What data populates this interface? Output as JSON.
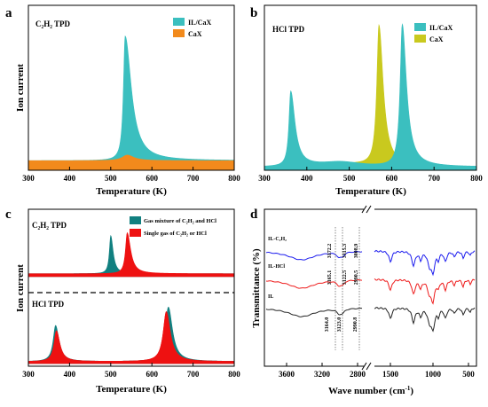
{
  "figure": {
    "panel_labels": [
      "a",
      "b",
      "c",
      "d"
    ]
  },
  "chart_data": [
    {
      "panel": "a",
      "type": "area",
      "title": "C₂H₂ TPD",
      "xlabel": "Temperature (K)",
      "ylabel": "Ion current",
      "xlim": [
        300,
        800
      ],
      "xticks": [
        "300",
        "400",
        "500",
        "600",
        "700",
        "800"
      ],
      "legend_position": "top-right",
      "series": [
        {
          "name": "IL/CaX",
          "color": "#3bbfbf",
          "baseline": 0.06,
          "peaks": [
            {
              "x": 535,
              "h": 0.78,
              "wl": 5,
              "wr": 18
            }
          ]
        },
        {
          "name": "CaX",
          "color": "#f28a1c",
          "baseline": 0.06,
          "peaks": [
            {
              "x": 540,
              "h": 0.035,
              "wl": 15,
              "wr": 20
            }
          ]
        }
      ]
    },
    {
      "panel": "b",
      "type": "area",
      "title": "HCl TPD",
      "xlabel": "Temperature (K)",
      "ylabel": "",
      "xlim": [
        300,
        800
      ],
      "xticks": [
        "300",
        "400",
        "500",
        "600",
        "700",
        "800"
      ],
      "legend_position": "top-right",
      "series": [
        {
          "name": "IL/CaX",
          "color": "#3bbfbf",
          "baseline": 0.02,
          "peaks": [
            {
              "x": 362,
              "h": 0.47,
              "wl": 5,
              "wr": 12
            },
            {
              "x": 625,
              "h": 0.89,
              "wl": 6,
              "wr": 12
            },
            {
              "x": 480,
              "h": 0.03,
              "wl": 60,
              "wr": 60
            }
          ]
        },
        {
          "name": "CaX",
          "color": "#c9c91e",
          "baseline": 0.02,
          "peaks": [
            {
              "x": 570,
              "h": 0.88,
              "wl": 6,
              "wr": 12
            },
            {
              "x": 510,
              "h": 0.02,
              "wl": 60,
              "wr": 60
            }
          ]
        }
      ]
    },
    {
      "panel": "c",
      "type": "area",
      "title_top": "C₂H₂  TPD",
      "title_bottom": "HCl TPD",
      "xlabel": "Temperature (K)",
      "ylabel": "Ion current",
      "xlim": [
        300,
        800
      ],
      "xticks": [
        "300",
        "400",
        "500",
        "600",
        "700",
        "800"
      ],
      "legend_position": "top-right",
      "legend": [
        "Gas mixture of C₂H₂ and HCl",
        "Single gas of C₂H₂ or HCl"
      ],
      "series": [
        {
          "name": "Gas mixture of C₂H₂ and HCl",
          "color": "#118080",
          "group": "top",
          "baseline": 0.05,
          "peaks": [
            {
              "x": 500,
              "h": 0.65,
              "wl": 4,
              "wr": 7
            }
          ]
        },
        {
          "name": "Single gas of C₂H₂ or HCl",
          "color": "#ee1111",
          "group": "top",
          "baseline": 0.05,
          "peaks": [
            {
              "x": 540,
              "h": 0.7,
              "wl": 5,
              "wr": 10
            }
          ]
        },
        {
          "name": "Gas mixture of C₂H₂ and HCl",
          "color": "#118080",
          "group": "bottom",
          "baseline": 0.03,
          "peaks": [
            {
              "x": 366,
              "h": 0.55,
              "wl": 7,
              "wr": 10
            },
            {
              "x": 640,
              "h": 0.83,
              "wl": 9,
              "wr": 12
            }
          ]
        },
        {
          "name": "Single gas of C₂H₂ or HCl",
          "color": "#ee1111",
          "group": "bottom",
          "baseline": 0.03,
          "peaks": [
            {
              "x": 368,
              "h": 0.47,
              "wl": 7,
              "wr": 10
            },
            {
              "x": 635,
              "h": 0.76,
              "wl": 9,
              "wr": 12
            }
          ]
        }
      ]
    },
    {
      "panel": "d",
      "type": "line",
      "xlabel": "Wave number (cm⁻¹)",
      "xlabel_prefix": "Wave number (cm",
      "xlabel_sup": "-1",
      "xlabel_suffix": ")",
      "ylabel": "Transmittance (%)",
      "xticks": [
        "3600",
        "3200",
        "2800",
        "1500",
        "1000",
        "500"
      ],
      "axis_break": "between 2800 and 1500",
      "series": [
        {
          "name": "IL-C₂H₂",
          "color": "#1a1aee"
        },
        {
          "name": "IL-HCl",
          "color": "#ee1a1a"
        },
        {
          "name": "IL",
          "color": "#222222"
        }
      ],
      "annotations": [
        "3172.2",
        "3115.3",
        "3008.9",
        "3165.1",
        "3122.5",
        "2990.5",
        "3164.0",
        "3123.0",
        "2990.8"
      ]
    }
  ]
}
